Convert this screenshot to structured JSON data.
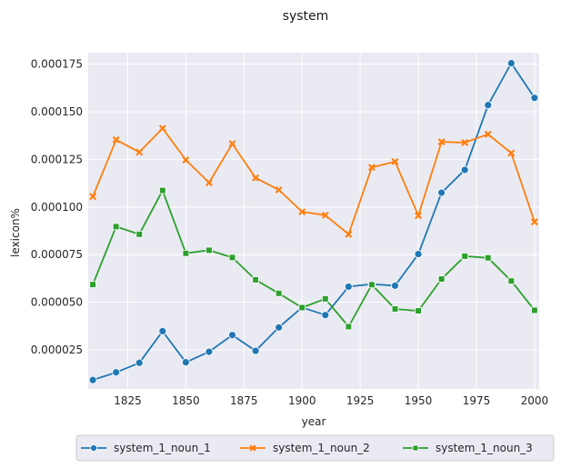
{
  "chart_data": {
    "type": "line",
    "title": "system",
    "xlabel": "year",
    "ylabel": "lexicon%",
    "xlim": [
      1808,
      2002
    ],
    "ylim": [
      4.5e-06,
      0.000181
    ],
    "xticks": [
      1825,
      1850,
      1875,
      1900,
      1925,
      1950,
      1975,
      2000
    ],
    "yticks": [
      2.5e-05,
      5e-05,
      7.5e-05,
      0.0001,
      0.000125,
      0.00015,
      0.000175
    ],
    "ytick_labels": [
      "0.000025",
      "0.000050",
      "0.000075",
      "0.000100",
      "0.000125",
      "0.000150",
      "0.000175"
    ],
    "grid": true,
    "legend_position": "bottom-center",
    "x": [
      1810,
      1820,
      1830,
      1840,
      1850,
      1860,
      1870,
      1880,
      1890,
      1900,
      1910,
      1920,
      1930,
      1940,
      1950,
      1960,
      1970,
      1980,
      1990,
      2000
    ],
    "series": [
      {
        "name": "system_1_noun_1",
        "color": "#1f77b4",
        "marker": "circle",
        "values": [
          9.2e-06,
          1.32e-05,
          1.82e-05,
          3.48e-05,
          1.85e-05,
          2.4e-05,
          3.28e-05,
          2.45e-05,
          3.68e-05,
          4.73e-05,
          4.33e-05,
          5.82e-05,
          5.95e-05,
          5.87e-05,
          7.53e-05,
          0.0001075,
          0.0001195,
          0.0001535,
          0.0001755,
          0.0001573
        ]
      },
      {
        "name": "system_1_noun_2",
        "color": "#ff7f0e",
        "marker": "x",
        "values": [
          0.0001055,
          0.0001353,
          0.0001288,
          0.0001413,
          0.0001247,
          0.0001128,
          0.0001332,
          0.0001153,
          0.000109,
          9.75e-05,
          9.57e-05,
          8.57e-05,
          0.0001208,
          0.0001238,
          9.55e-05,
          0.0001342,
          0.0001338,
          0.0001382,
          0.0001283,
          9.22e-05
        ]
      },
      {
        "name": "system_1_noun_3",
        "color": "#2ca02c",
        "marker": "square",
        "values": [
          5.93e-05,
          8.97e-05,
          8.57e-05,
          0.0001087,
          7.57e-05,
          7.73e-05,
          7.35e-05,
          6.18e-05,
          5.47e-05,
          4.72e-05,
          5.18e-05,
          3.72e-05,
          5.92e-05,
          4.65e-05,
          4.55e-05,
          6.22e-05,
          7.42e-05,
          7.33e-05,
          6.12e-05,
          4.58e-05
        ]
      }
    ]
  }
}
